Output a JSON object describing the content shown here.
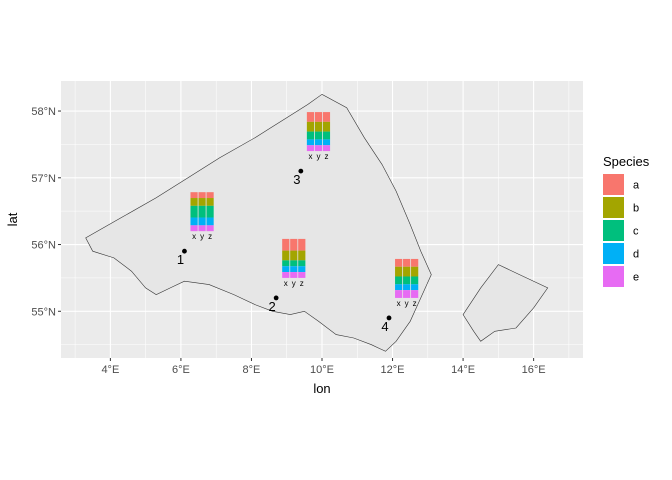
{
  "chart_data": {
    "type": "map-with-stacked-bar-insets",
    "xlabel": "lon",
    "ylabel": "lat",
    "xlim": [
      2.6,
      17.4
    ],
    "ylim": [
      54.3,
      58.45
    ],
    "grid": true,
    "x_ticks": [
      {
        "value": 4,
        "label": "4°E"
      },
      {
        "value": 6,
        "label": "6°E"
      },
      {
        "value": 8,
        "label": "8°E"
      },
      {
        "value": 10,
        "label": "10°E"
      },
      {
        "value": 12,
        "label": "12°E"
      },
      {
        "value": 14,
        "label": "14°E"
      },
      {
        "value": 16,
        "label": "16°E"
      }
    ],
    "y_ticks": [
      {
        "value": 55,
        "label": "55°N"
      },
      {
        "value": 56,
        "label": "56°N"
      },
      {
        "value": 57,
        "label": "57°N"
      },
      {
        "value": 58,
        "label": "58°N"
      }
    ],
    "legend": {
      "title": "Species",
      "position": "right",
      "entries": [
        {
          "label": "a",
          "color": "#F8766D"
        },
        {
          "label": "b",
          "color": "#A3A500"
        },
        {
          "label": "c",
          "color": "#00BF7D"
        },
        {
          "label": "d",
          "color": "#00B0F6"
        },
        {
          "label": "e",
          "color": "#E76BF3"
        }
      ]
    },
    "regions": [
      {
        "fill": "#E6E6E6",
        "stroke": "#333333",
        "polygon": [
          [
            3.3,
            56.1
          ],
          [
            4.3,
            56.4
          ],
          [
            5.3,
            56.7
          ],
          [
            6.2,
            57.0
          ],
          [
            7.1,
            57.3
          ],
          [
            8.1,
            57.6
          ],
          [
            9.0,
            57.9
          ],
          [
            9.6,
            58.1
          ],
          [
            10.0,
            58.25
          ],
          [
            10.7,
            58.05
          ],
          [
            11.2,
            57.6
          ],
          [
            11.7,
            57.2
          ],
          [
            12.1,
            56.8
          ],
          [
            12.5,
            56.3
          ],
          [
            12.8,
            55.9
          ],
          [
            13.1,
            55.55
          ],
          [
            12.8,
            55.2
          ],
          [
            12.5,
            54.85
          ],
          [
            12.1,
            54.55
          ],
          [
            11.8,
            54.4
          ],
          [
            11.4,
            54.5
          ],
          [
            10.9,
            54.6
          ],
          [
            10.4,
            54.65
          ],
          [
            9.9,
            54.85
          ],
          [
            9.5,
            55.0
          ],
          [
            9.1,
            54.95
          ],
          [
            8.6,
            55.0
          ],
          [
            8.1,
            55.1
          ],
          [
            7.5,
            55.25
          ],
          [
            6.8,
            55.4
          ],
          [
            6.1,
            55.45
          ],
          [
            5.7,
            55.35
          ],
          [
            5.3,
            55.25
          ],
          [
            5.0,
            55.35
          ],
          [
            4.6,
            55.6
          ],
          [
            4.1,
            55.8
          ],
          [
            3.5,
            55.9
          ]
        ]
      },
      {
        "fill": "#E6E6E6",
        "stroke": "#333333",
        "polygon": [
          [
            14.0,
            54.95
          ],
          [
            14.5,
            55.35
          ],
          [
            15.0,
            55.7
          ],
          [
            15.6,
            55.55
          ],
          [
            16.4,
            55.35
          ],
          [
            16.0,
            55.05
          ],
          [
            15.5,
            54.75
          ],
          [
            14.9,
            54.7
          ],
          [
            14.5,
            54.55
          ],
          [
            14.3,
            54.7
          ]
        ]
      }
    ],
    "sites": [
      {
        "id": "1",
        "lon": 6.1,
        "lat": 55.9,
        "bars_center_lon": 6.6,
        "bars_bottom_lat": 56.2,
        "bar_labels": [
          "x",
          "y",
          "z"
        ],
        "bars": [
          [
            0.15,
            0.2,
            0.3,
            0.2,
            0.15
          ],
          [
            0.15,
            0.2,
            0.3,
            0.2,
            0.15
          ],
          [
            0.15,
            0.2,
            0.3,
            0.2,
            0.15
          ]
        ]
      },
      {
        "id": "2",
        "lon": 8.7,
        "lat": 55.2,
        "bars_center_lon": 9.2,
        "bars_bottom_lat": 55.5,
        "bar_labels": [
          "x",
          "y",
          "z"
        ],
        "bars": [
          [
            0.3,
            0.25,
            0.15,
            0.15,
            0.15
          ],
          [
            0.3,
            0.25,
            0.15,
            0.15,
            0.15
          ],
          [
            0.3,
            0.25,
            0.15,
            0.15,
            0.15
          ]
        ]
      },
      {
        "id": "3",
        "lon": 9.4,
        "lat": 57.1,
        "bars_center_lon": 9.9,
        "bars_bottom_lat": 57.4,
        "bar_labels": [
          "x",
          "y",
          "z"
        ],
        "bars": [
          [
            0.25,
            0.25,
            0.2,
            0.15,
            0.15
          ],
          [
            0.25,
            0.25,
            0.2,
            0.15,
            0.15
          ],
          [
            0.25,
            0.25,
            0.2,
            0.15,
            0.15
          ]
        ]
      },
      {
        "id": "4",
        "lon": 11.9,
        "lat": 54.9,
        "bars_center_lon": 12.4,
        "bars_bottom_lat": 55.2,
        "bar_labels": [
          "x",
          "y",
          "z"
        ],
        "bars": [
          [
            0.2,
            0.25,
            0.2,
            0.15,
            0.2
          ],
          [
            0.2,
            0.25,
            0.2,
            0.15,
            0.2
          ],
          [
            0.2,
            0.25,
            0.2,
            0.15,
            0.2
          ]
        ]
      }
    ]
  }
}
